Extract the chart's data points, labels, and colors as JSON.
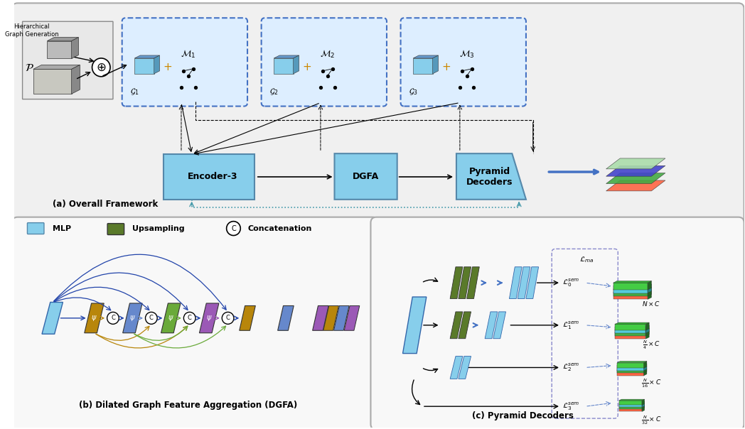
{
  "bg_color": "#ffffff",
  "outer_bg": "#f5f5f5",
  "title_a": "(a) Overall Framework",
  "title_b": "(b) Dilated Graph Feature Aggregation (DGFA)",
  "title_c": "(c) Pyramid Decoders",
  "legend_mlp": "MLP",
  "legend_upsample": "Upsampling",
  "legend_concat": "Concatenation",
  "encoder_label": "Encoder-3",
  "dgfa_label": "DGFA",
  "decoder_label": "Pyramid\nDecoders",
  "panel_bg": "#ffffff",
  "dashed_box_color": "#4472c4",
  "encoder_color": "#7fb3c8",
  "dgfa_color": "#7fb3c8",
  "decoder_color": "#7fb3c8",
  "mlp_color": "#87ceeb",
  "upsample_color": "#5a7a2a",
  "blue_arrow_color": "#2244aa",
  "gold_color": "#b8860b",
  "green_color": "#6aaa3a",
  "purple_color": "#9b59b6",
  "dark_olive": "#556b2f",
  "loss_labels": [
    "\\mathcal{L}_{ma}",
    "\\mathcal{L}_0^{sem}",
    "\\mathcal{L}_1^{sem}",
    "\\mathcal{L}_2^{sem}",
    "\\mathcal{L}_3^{sem}"
  ],
  "size_labels": [
    "N \\times C",
    "\\frac{N}{4} \\times C",
    "\\frac{N}{16} \\times C",
    "\\frac{N}{32} \\times C"
  ]
}
